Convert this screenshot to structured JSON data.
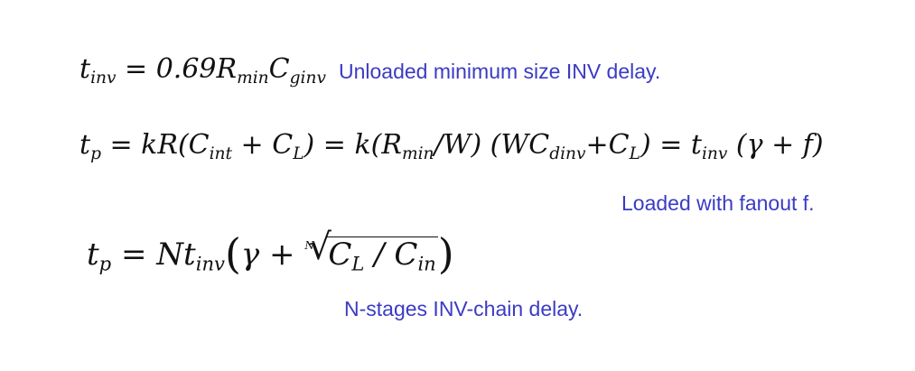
{
  "equations": {
    "eq1": {
      "t": "t",
      "t_sub": "inv",
      "eq": " = 0.69",
      "R": "R",
      "R_sub": "min",
      "C": "C",
      "C_sub": "ginv"
    },
    "eq2": {
      "t": "t",
      "t_sub": "p",
      "part1": " = kR(C",
      "cint_sub": "int",
      "part2": " + C",
      "cl_sub": "L",
      "part3": ") = k(R",
      "rmin_sub": "min",
      "part4": "/W) (WC",
      "cdinv_sub": "dinv",
      "part5": "+C",
      "cl2_sub": "L",
      "part6": ") = t",
      "tinv_sub": "inv",
      "part7": " (γ + f)"
    },
    "eq3": {
      "t": "t",
      "t_sub": "p",
      "part1": " = Nt",
      "tinv_sub": "inv",
      "lparen": "(",
      "gamma_plus": "γ + ",
      "root_index": "N",
      "root_symbol": "√",
      "cl": "C",
      "cl_sub": "L",
      "slash": " / ",
      "cin": "C",
      "cin_sub": "in",
      "rparen": ")"
    }
  },
  "notes": {
    "note1": "Unloaded minimum size INV delay.",
    "note2": "Loaded with fanout f.",
    "note3": "N-stages INV-chain delay."
  }
}
